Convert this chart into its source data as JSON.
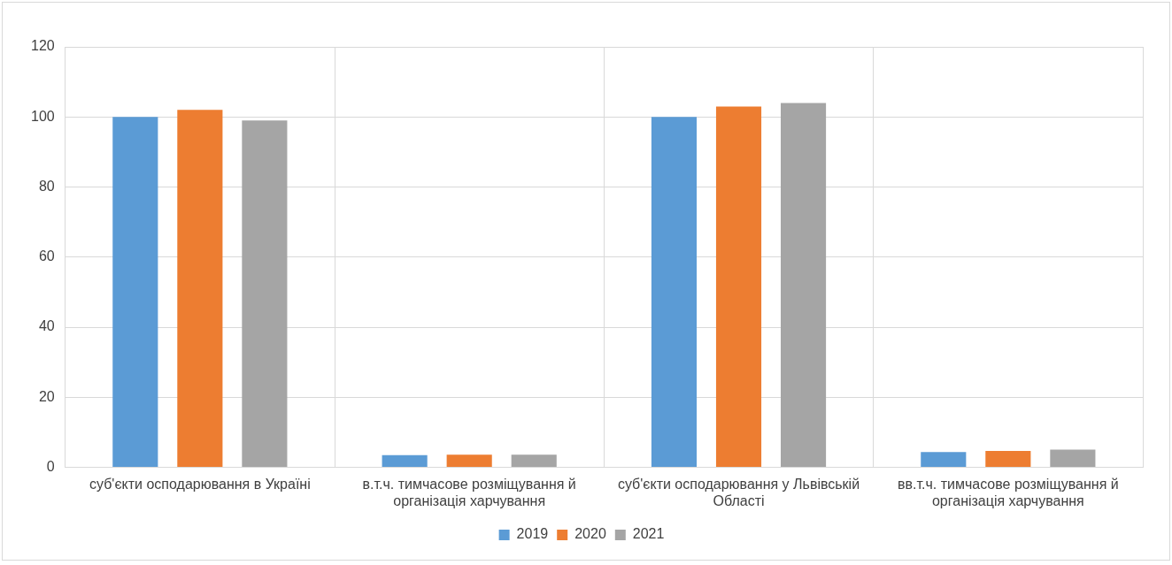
{
  "chart_data": {
    "type": "bar",
    "categories": [
      "суб'єкти осподарювання в Україні",
      "в.т.ч. тимчасове розміщування й організація харчування",
      "суб'єкти осподарювання у Львівській Області",
      "вв.т.ч. тимчасове розміщування й організація харчування"
    ],
    "series": [
      {
        "name": "2019",
        "color": "#5b9bd5",
        "values": [
          100,
          3.5,
          100,
          4.4
        ]
      },
      {
        "name": "2020",
        "color": "#ed7d31",
        "values": [
          102,
          3.6,
          103,
          4.7
        ]
      },
      {
        "name": "2021",
        "color": "#a5a5a5",
        "values": [
          99,
          3.6,
          104,
          5.1
        ]
      }
    ],
    "ylim": [
      0,
      120
    ],
    "yticks": [
      0,
      20,
      40,
      60,
      80,
      100,
      120
    ],
    "grid": true,
    "legend": "bottom"
  }
}
